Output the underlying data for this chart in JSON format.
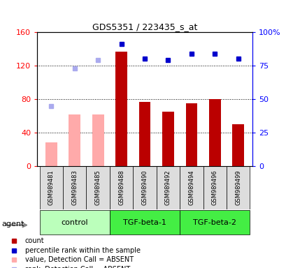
{
  "title": "GDS5351 / 223435_s_at",
  "samples": [
    "GSM989481",
    "GSM989483",
    "GSM989485",
    "GSM989488",
    "GSM989490",
    "GSM989492",
    "GSM989494",
    "GSM989496",
    "GSM989499"
  ],
  "groups": [
    {
      "label": "control",
      "n": 3,
      "color": "#bbffbb"
    },
    {
      "label": "TGF-beta-1",
      "n": 3,
      "color": "#44ee44"
    },
    {
      "label": "TGF-beta-2",
      "n": 3,
      "color": "#44ee44"
    }
  ],
  "bar_values": [
    28,
    62,
    62,
    137,
    77,
    65,
    75,
    80,
    50
  ],
  "bar_absent": [
    true,
    true,
    true,
    false,
    false,
    false,
    false,
    false,
    false
  ],
  "rank_values": [
    45,
    73,
    79,
    91,
    80,
    79,
    84,
    84,
    80
  ],
  "rank_absent": [
    true,
    true,
    true,
    false,
    false,
    false,
    false,
    false,
    false
  ],
  "ylim_left": [
    0,
    160
  ],
  "ylim_right": [
    0,
    100
  ],
  "yticks_left": [
    0,
    40,
    80,
    120,
    160
  ],
  "yticks_right": [
    0,
    25,
    50,
    75,
    100
  ],
  "ytick_labels_right": [
    "0",
    "25",
    "50",
    "75",
    "100%"
  ],
  "color_bar_present": "#bb0000",
  "color_bar_absent": "#ffaaaa",
  "color_rank_present": "#0000cc",
  "color_rank_absent": "#aaaaee",
  "bar_width": 0.5,
  "legend_items": [
    {
      "color": "#bb0000",
      "label": "count",
      "marker": "s"
    },
    {
      "color": "#0000cc",
      "label": "percentile rank within the sample",
      "marker": "s"
    },
    {
      "color": "#ffaaaa",
      "label": "value, Detection Call = ABSENT",
      "marker": "s"
    },
    {
      "color": "#aaaaee",
      "label": "rank, Detection Call = ABSENT",
      "marker": "s"
    }
  ]
}
